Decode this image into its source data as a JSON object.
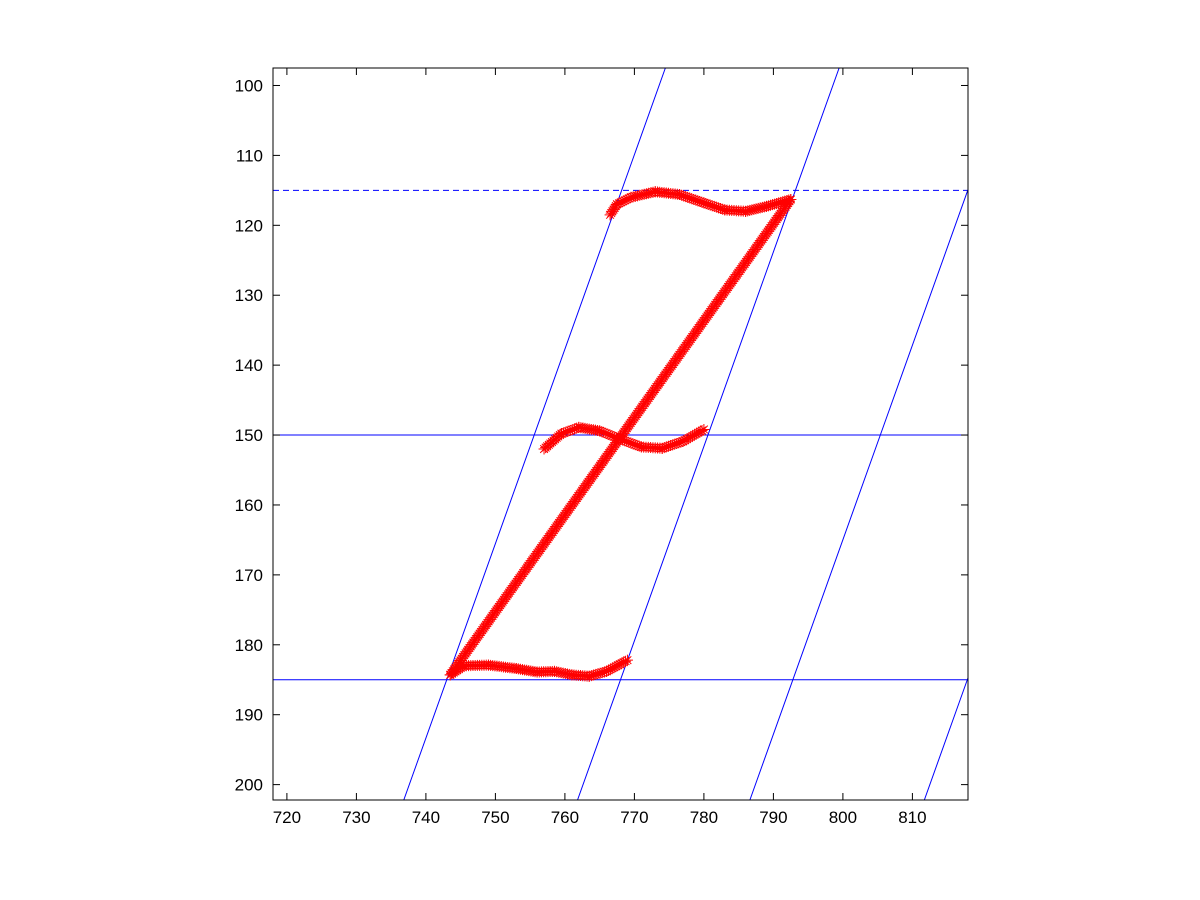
{
  "chart_data": {
    "type": "scatter",
    "title": "",
    "xlabel": "",
    "ylabel": "",
    "xlim": [
      718,
      818
    ],
    "ylim": [
      202.2,
      97.5
    ],
    "y_axis_direction": "reversed",
    "grid": false,
    "legend": "none",
    "x_ticks": [
      "720",
      "730",
      "740",
      "750",
      "760",
      "770",
      "780",
      "790",
      "800",
      "810"
    ],
    "y_ticks": [
      "100",
      "110",
      "120",
      "130",
      "140",
      "150",
      "160",
      "170",
      "180",
      "190",
      "200"
    ],
    "colors": {
      "guide_lines": "#0000ff",
      "stroke_markers": "#ff0000",
      "axes": "#000000"
    },
    "marker": "asterisk",
    "guide_lines": {
      "horizontal": [
        {
          "y": 115,
          "style": "dashed"
        },
        {
          "y": 150,
          "style": "solid"
        },
        {
          "y": 185,
          "style": "solid"
        }
      ],
      "slanted": [
        {
          "x_at_y185": 743.0,
          "dx_per_unit_y": -0.3595
        },
        {
          "x_at_y185": 768.0,
          "dx_per_unit_y": -0.3595
        },
        {
          "x_at_y185": 792.8,
          "dx_per_unit_y": -0.3595
        },
        {
          "x_at_y185": 817.9,
          "dx_per_unit_y": -0.3595
        }
      ]
    },
    "series": [
      {
        "points": [
          [
            766.5,
            118.5
          ],
          [
            767.5,
            117.0
          ],
          [
            769.5,
            116.0
          ],
          [
            773.0,
            115.2
          ],
          [
            776.5,
            115.6
          ],
          [
            780.0,
            116.8
          ],
          [
            783.0,
            117.8
          ],
          [
            786.0,
            118.0
          ],
          [
            789.0,
            117.3
          ],
          [
            792.5,
            116.3
          ]
        ]
      },
      {
        "points": [
          [
            792.5,
            116.3
          ],
          [
            768.0,
            150.3
          ],
          [
            743.5,
            184.3
          ]
        ]
      },
      {
        "points": [
          [
            757.0,
            152.0
          ],
          [
            759.5,
            149.8
          ],
          [
            762.0,
            148.9
          ],
          [
            765.0,
            149.4
          ],
          [
            768.0,
            150.6
          ],
          [
            771.0,
            151.7
          ],
          [
            774.0,
            151.9
          ],
          [
            777.0,
            150.9
          ],
          [
            780.0,
            149.2
          ]
        ]
      },
      {
        "points": [
          [
            743.5,
            184.3
          ],
          [
            745.5,
            183.0
          ],
          [
            749.0,
            182.9
          ],
          [
            753.0,
            183.4
          ],
          [
            756.0,
            183.9
          ],
          [
            758.5,
            183.8
          ],
          [
            761.0,
            184.3
          ],
          [
            763.5,
            184.5
          ],
          [
            766.0,
            183.8
          ],
          [
            769.0,
            182.2
          ]
        ]
      }
    ]
  }
}
